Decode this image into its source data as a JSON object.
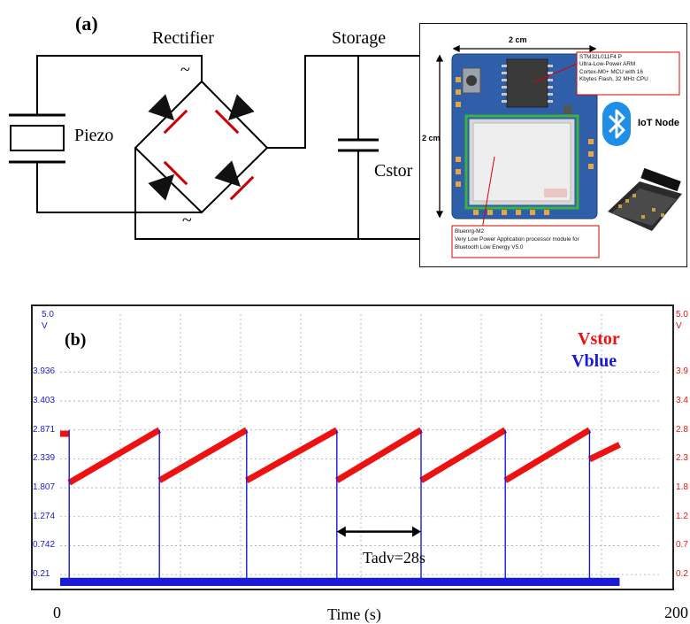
{
  "panel_a": {
    "label": "(a)",
    "rectifier_label": "Rectifier",
    "storage_label": "Storage",
    "piezo_label": "Piezo",
    "cstor_label": "Cstor",
    "ac_symbol_top": "~",
    "ac_symbol_bottom": "~"
  },
  "iot_board": {
    "width_dim": "2 cm",
    "height_dim": "2 cm",
    "mcu_callout": "STM32L011F4  P\nUltra-Low-Power ARM\nCortex-M0+ MCU with 16\nKbytes Flash, 32 MHz CPU",
    "ble_callout": "Bluenrg-M2\nVery Low Power Application processor module for\nBluetooth Low Energy V5.0",
    "node_label": "IoT Node",
    "bluetooth_icon": "bluetooth-icon",
    "colors": {
      "pcb": "#2f5fa8",
      "chip": "#3a3a3a",
      "module": "#d8d8d8",
      "bt": "#1f8ee6"
    }
  },
  "panel_b": {
    "label": "(b)",
    "left_top": "5.0",
    "left_unit": "V",
    "right_top": "5.0",
    "right_unit": "V",
    "y_ticks_left": [
      "3.936",
      "3.403",
      "2.871",
      "2.339",
      "1.807",
      "1.274",
      "0.742",
      "0.21"
    ],
    "y_ticks_right": [
      "3.9",
      "3.4",
      "2.8",
      "2.3",
      "1.8",
      "1.2",
      "0.7",
      "0.2"
    ],
    "x_start": "0",
    "x_end": "200",
    "xlabel": "Time (s)",
    "annotation": "Tadv=28s",
    "legend": [
      "Vstor",
      "Vblue"
    ]
  },
  "chart_data": {
    "type": "line",
    "xlabel": "Time (s)",
    "xlim": [
      0,
      200
    ],
    "ylim": [
      0,
      5.0
    ],
    "y_ticks": [
      3.936,
      3.403,
      2.871,
      2.339,
      1.807,
      1.274,
      0.742,
      0.21
    ],
    "grid": true,
    "legend_position": "top-right",
    "annotation": {
      "text": "Tadv=28s",
      "x_from": 92,
      "x_to": 120
    },
    "series": [
      {
        "name": "Vstor",
        "color": "#e11",
        "x": [
          0,
          3,
          3,
          33,
          33,
          62,
          62,
          92,
          92,
          120,
          120,
          148,
          148,
          176,
          176,
          186
        ],
        "values": [
          2.8,
          2.8,
          1.9,
          2.87,
          1.94,
          2.87,
          1.94,
          2.87,
          1.94,
          2.87,
          1.94,
          2.87,
          1.94,
          2.87,
          2.33,
          2.6
        ]
      },
      {
        "name": "Vblue",
        "color": "#1a1ad6",
        "x": [
          0,
          3,
          3,
          3,
          33,
          33,
          33,
          62,
          62,
          62,
          92,
          92,
          92,
          120,
          120,
          120,
          148,
          148,
          148,
          176,
          176,
          176,
          186
        ],
        "values": [
          0.08,
          0.08,
          2.87,
          0.08,
          0.08,
          2.87,
          0.08,
          0.08,
          2.87,
          0.08,
          0.08,
          2.87,
          0.08,
          0.08,
          2.87,
          0.08,
          0.08,
          2.87,
          0.08,
          0.08,
          2.87,
          0.08,
          0.08
        ]
      }
    ]
  }
}
